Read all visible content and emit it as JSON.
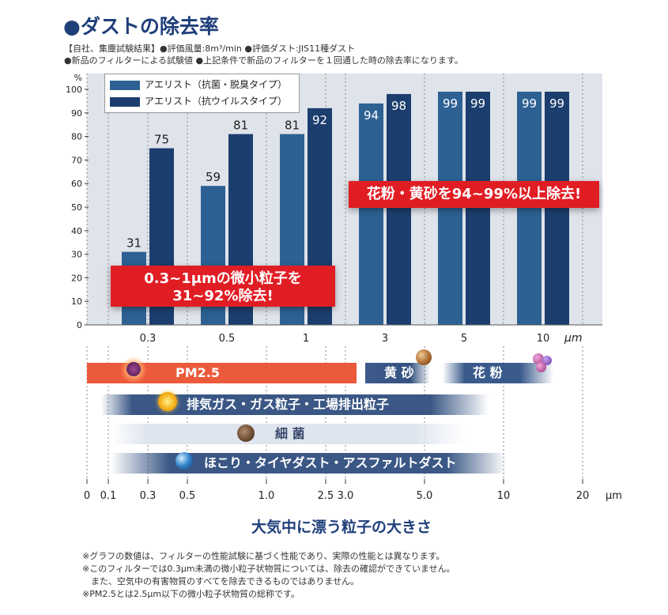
{
  "title": "●ダストの除去率",
  "notes": [
    "【自社、集塵試験結果】●評価風量:8m³/min ●評価ダスト:JIS11種ダスト",
    "●新品のフィルターによる試験値 ●上記条件で新品のフィルターを１回通した時の除去率になります。"
  ],
  "chart_data": {
    "type": "bar",
    "ylabel": "%",
    "xunit": "μm",
    "ylim": [
      0,
      100
    ],
    "yticks": [
      0,
      10,
      20,
      30,
      40,
      50,
      60,
      70,
      80,
      90,
      100
    ],
    "categories": [
      "0.3",
      "0.5",
      "1",
      "3",
      "5",
      "10"
    ],
    "series": [
      {
        "name": "アエリスト（抗菌・脱臭タイプ）",
        "color": "#2d6193",
        "values": [
          31,
          59,
          81,
          94,
          99,
          99
        ]
      },
      {
        "name": "アエリスト（抗ウイルスタイプ）",
        "color": "#1c3e6e",
        "values": [
          75,
          81,
          92,
          98,
          99,
          99
        ]
      }
    ],
    "callouts": [
      "0.3~1μmの微小粒子を",
      "31~92%除去!",
      "花粉・黄砂を94~99%以上除去!"
    ]
  },
  "scale": {
    "ticks": [
      "0",
      "0.1",
      "0.3",
      "0.5",
      "1.0",
      "2.5",
      "3.0",
      "5.0",
      "10",
      "20"
    ],
    "unit": "μm",
    "title": "大気中に漂う粒子の大きさ"
  },
  "bands": {
    "pm": "PM2.5",
    "kosa": "黄 砂",
    "kafun": "花 粉",
    "exhaust": "排気ガス・ガス粒子・工場排出粒子",
    "saikin": "細 菌",
    "hokori": "ほこり・タイヤダスト・アスファルトダスト"
  },
  "footnotes": [
    "※グラフの数値は、フィルターの性能試験に基づく性能であり、実際の性能とは異なります。",
    "※このフィルターでは0.3μm未満の微小粒子状物質については、除去の確認ができていません。",
    "　また、空気中の有害物質のすべてを除去できるものではありません。",
    "※PM2.5とは2.5μm以下の微小粒子状物質の総称です。"
  ],
  "colors": {
    "title": "#1f3f7a",
    "callout": "#e11d24",
    "pm": "#ec5a3c"
  }
}
